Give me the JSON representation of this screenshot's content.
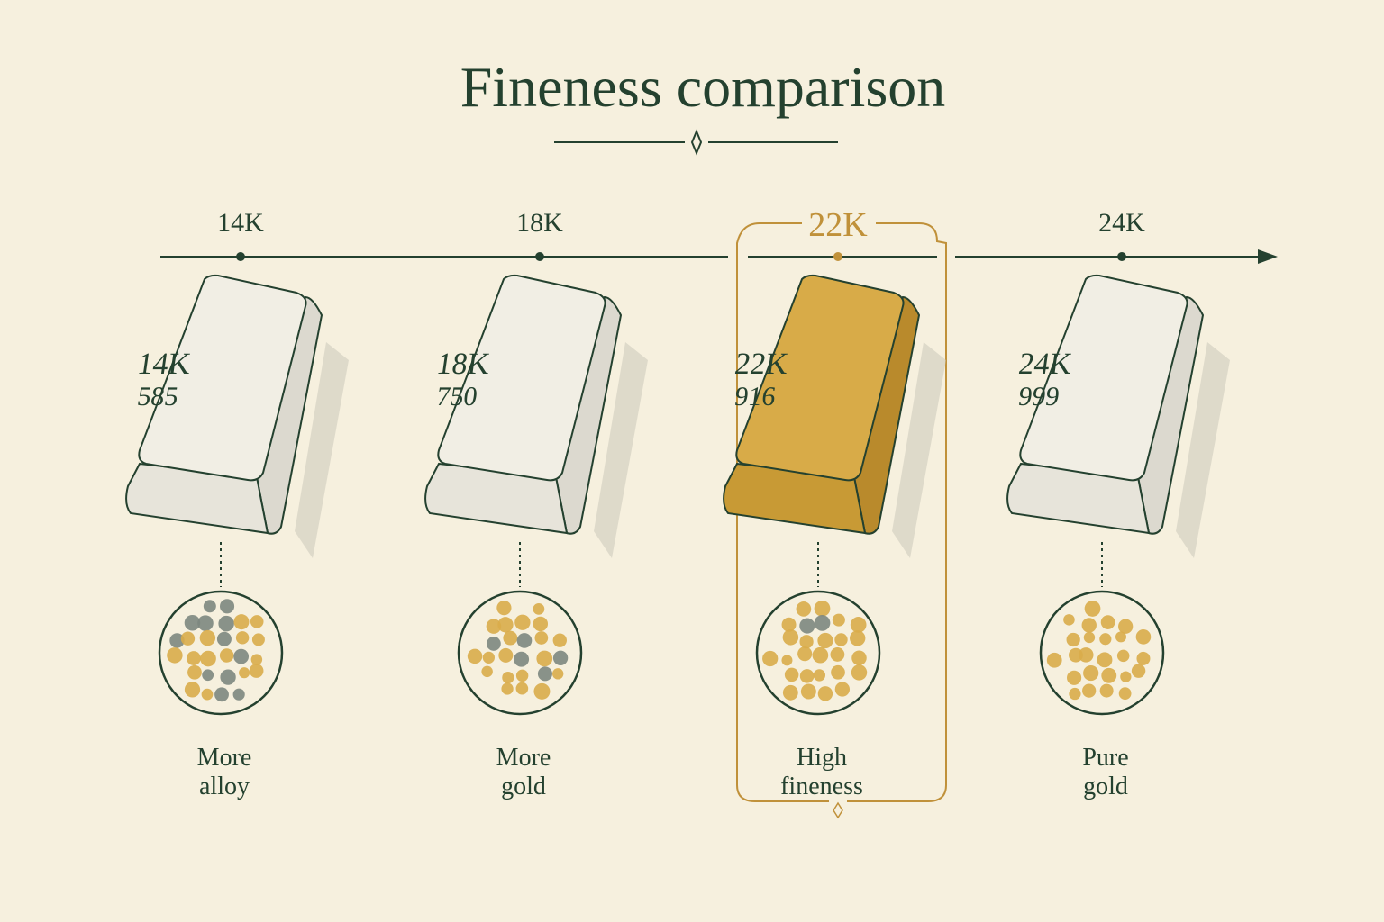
{
  "title": "Fineness comparison",
  "items": [
    {
      "timeline_label": "14K",
      "bar_karat": "14K",
      "bar_fineness": "585",
      "caption_lines": [
        "More",
        "alloy"
      ]
    },
    {
      "timeline_label": "18K",
      "bar_karat": "18K",
      "bar_fineness": "750",
      "caption_lines": [
        "More",
        "gold"
      ]
    },
    {
      "timeline_label": "22K",
      "bar_karat": "22K",
      "bar_fineness": "916",
      "caption_lines": [
        "High",
        "fineness"
      ],
      "highlighted": true
    },
    {
      "timeline_label": "24K",
      "bar_karat": "24K",
      "bar_fineness": "999",
      "caption_lines": [
        "Pure",
        "gold"
      ]
    }
  ]
}
